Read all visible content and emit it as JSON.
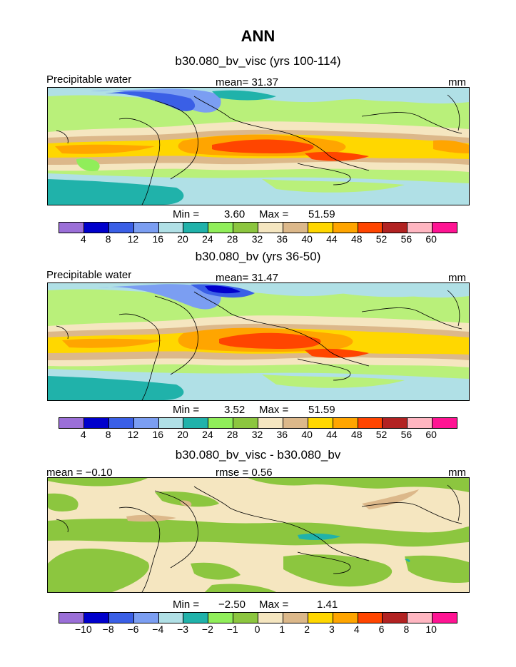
{
  "title": "ANN",
  "colors": {
    "abs_palette": [
      "#9b6fd8",
      "#0000cc",
      "#3a5fe6",
      "#7b9ef2",
      "#b0e0e6",
      "#20b2aa",
      "#90ee5a",
      "#8cc63f",
      "#f5e6c0",
      "#dcb88a",
      "#ffd700",
      "#ffa500",
      "#ff4500",
      "#b22222",
      "#ffb6c1",
      "#ff1493"
    ],
    "diff_palette": [
      "#9b6fd8",
      "#0000cc",
      "#3a5fe6",
      "#7b9ef2",
      "#b0e0e6",
      "#20b2aa",
      "#90ee5a",
      "#8cc63f",
      "#f5e6c0",
      "#dcb88a",
      "#ffd700",
      "#ffa500",
      "#ff4500",
      "#b22222",
      "#ffb6c1",
      "#ff1493"
    ]
  },
  "panels": [
    {
      "subtitle": "b30.080_bv_visc (yrs 100-114)",
      "left_label": "Precipitable water",
      "center_label": "mean=  31.37",
      "right_label": "mm",
      "min_label": "Min =",
      "min_value": "3.60",
      "max_label": "Max =",
      "max_value": "51.59",
      "ticks": [
        "4",
        "8",
        "12",
        "16",
        "20",
        "24",
        "28",
        "32",
        "36",
        "40",
        "44",
        "48",
        "52",
        "56",
        "60"
      ]
    },
    {
      "subtitle": "b30.080_bv (yrs 36-50)",
      "left_label": "Precipitable water",
      "center_label": "mean=  31.47",
      "right_label": "mm",
      "min_label": "Min =",
      "min_value": "3.52",
      "max_label": "Max =",
      "max_value": "51.59",
      "ticks": [
        "4",
        "8",
        "12",
        "16",
        "20",
        "24",
        "28",
        "32",
        "36",
        "40",
        "44",
        "48",
        "52",
        "56",
        "60"
      ]
    },
    {
      "subtitle": "b30.080_bv_visc - b30.080_bv",
      "left_label": "mean =  −0.10",
      "center_label": "rmse =   0.56",
      "right_label": "mm",
      "min_label": "Min =",
      "min_value": "−2.50",
      "max_label": "Max =",
      "max_value": "1.41",
      "ticks": [
        "−10",
        "−8",
        "−6",
        "−4",
        "−3",
        "−2",
        "−1",
        "0",
        "1",
        "2",
        "3",
        "4",
        "6",
        "8",
        "10"
      ]
    }
  ],
  "chart_data": [
    {
      "type": "heatmap",
      "title": "b30.080_bv_visc (yrs 100-114)",
      "variable": "Precipitable water",
      "units": "mm",
      "mean": 31.37,
      "min": 3.6,
      "max": 51.59,
      "contour_levels": [
        4,
        8,
        12,
        16,
        20,
        24,
        28,
        32,
        36,
        40,
        44,
        48,
        52,
        56,
        60
      ]
    },
    {
      "type": "heatmap",
      "title": "b30.080_bv (yrs 36-50)",
      "variable": "Precipitable water",
      "units": "mm",
      "mean": 31.47,
      "min": 3.52,
      "max": 51.59,
      "contour_levels": [
        4,
        8,
        12,
        16,
        20,
        24,
        28,
        32,
        36,
        40,
        44,
        48,
        52,
        56,
        60
      ]
    },
    {
      "type": "heatmap",
      "title": "b30.080_bv_visc - b30.080_bv",
      "units": "mm",
      "mean": -0.1,
      "rmse": 0.56,
      "min": -2.5,
      "max": 1.41,
      "contour_levels": [
        -10,
        -8,
        -6,
        -4,
        -3,
        -2,
        -1,
        0,
        1,
        2,
        3,
        4,
        6,
        8,
        10
      ]
    }
  ]
}
